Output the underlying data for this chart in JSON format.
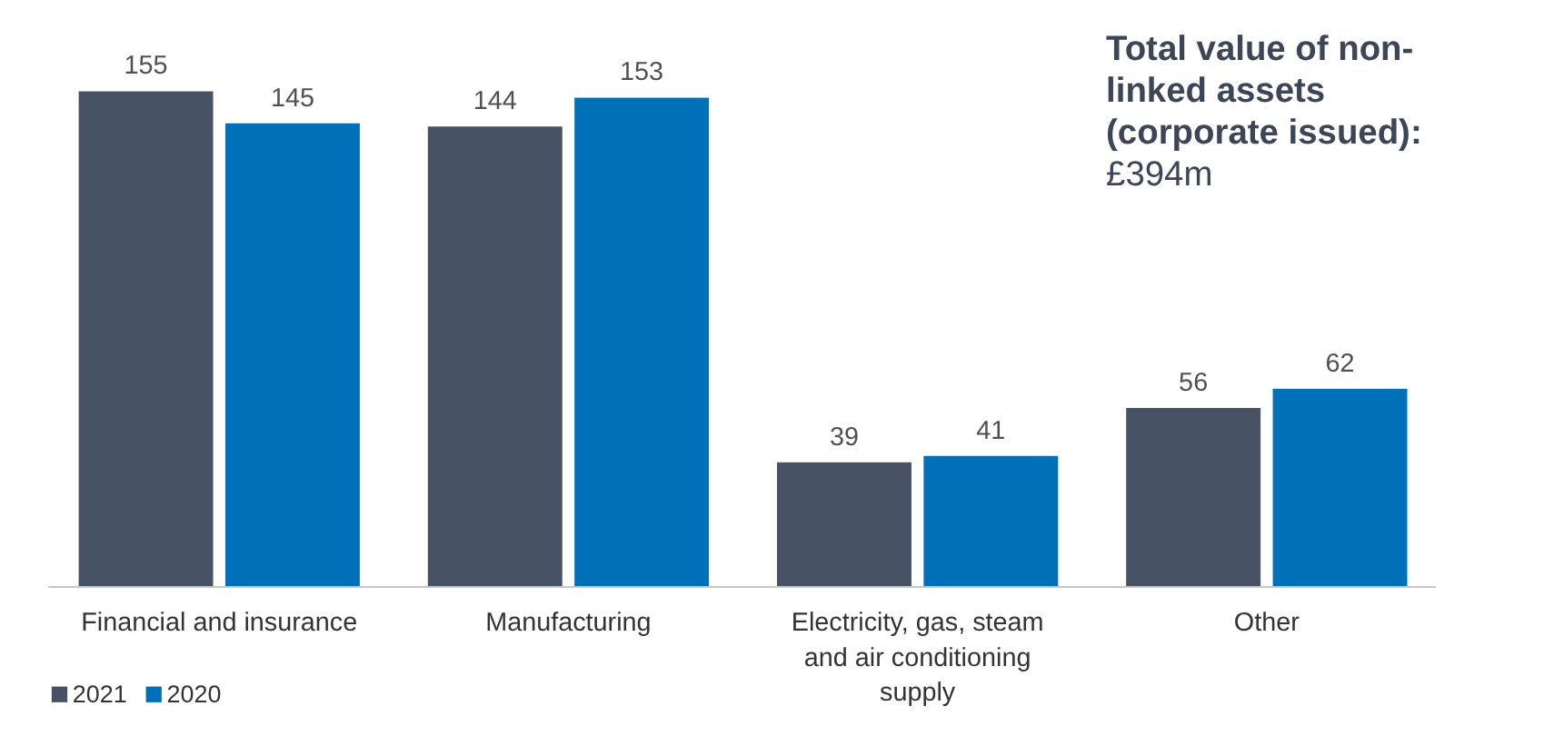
{
  "chart_data": {
    "type": "bar",
    "title": "Total value of non-linked assets (corporate issued):",
    "subtitle": "£394m",
    "categories": [
      "Financial and insurance",
      "Manufacturing",
      "Electricity, gas, steam and air conditioning supply",
      "Other"
    ],
    "series": [
      {
        "name": "2021",
        "color": "#475264",
        "values": [
          155,
          144,
          39,
          56
        ]
      },
      {
        "name": "2020",
        "color": "#0071b9",
        "values": [
          145,
          153,
          41,
          62
        ]
      }
    ],
    "data_labels": true,
    "legend": "bottom"
  }
}
